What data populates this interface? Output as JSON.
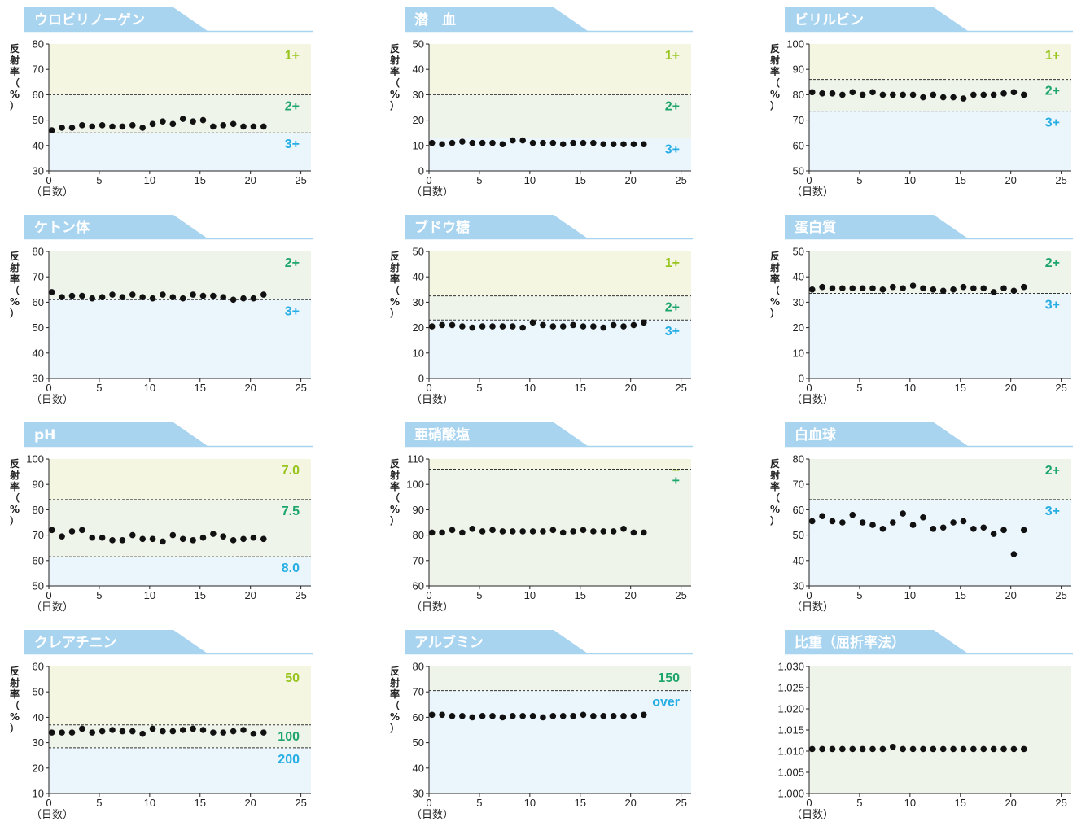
{
  "common": {
    "ylabel": "反射率（%）",
    "xlabel": "（日数）",
    "colors": {
      "tab": "#a9d4f0",
      "band_yellow": "#f4f6e2",
      "band_green": "#eef4ea",
      "band_blue": "#ebf5fc",
      "label_yellow": "#98c41e",
      "label_green": "#1ea56b",
      "label_blue": "#26aee4"
    }
  },
  "chart_data": [
    {
      "type": "scatter",
      "title": "ウロビリノーゲン",
      "xlabel": "（日数）",
      "ylabel": "反射率（%）",
      "xlim": [
        0,
        26
      ],
      "ylim": [
        30,
        80
      ],
      "xticks": [
        "0",
        "5",
        "10",
        "15",
        "20",
        "25"
      ],
      "yticks": [
        "30",
        "40",
        "50",
        "60",
        "70",
        "80"
      ],
      "thresholds": [
        60,
        45
      ],
      "bands": [
        {
          "from": 60,
          "to": 80,
          "label": "1+",
          "color": "yellow"
        },
        {
          "from": 45,
          "to": 60,
          "label": "2+",
          "color": "green"
        },
        {
          "from": 30,
          "to": 45,
          "label": "3+",
          "color": "blue"
        }
      ],
      "x": [
        0.3,
        1.3,
        2.3,
        3.3,
        4.3,
        5.3,
        6.3,
        7.3,
        8.3,
        9.3,
        10.3,
        11.3,
        12.3,
        13.3,
        14.3,
        15.3,
        16.3,
        17.3,
        18.3,
        19.3,
        20.3,
        21.3
      ],
      "y": [
        46,
        47,
        47,
        48,
        47.5,
        48,
        47.5,
        47.5,
        48,
        47,
        48.5,
        49.5,
        48.5,
        50.5,
        49.5,
        50,
        47.5,
        48,
        48.5,
        47.5,
        47.5,
        47.5
      ]
    },
    {
      "type": "scatter",
      "title": "潜　血",
      "xlabel": "（日数）",
      "ylabel": "反射率（%）",
      "xlim": [
        0,
        26
      ],
      "ylim": [
        0,
        50
      ],
      "xticks": [
        "0",
        "5",
        "10",
        "15",
        "20",
        "25"
      ],
      "yticks": [
        "0",
        "10",
        "20",
        "30",
        "40",
        "50"
      ],
      "thresholds": [
        30,
        13
      ],
      "bands": [
        {
          "from": 30,
          "to": 50,
          "label": "1+",
          "color": "yellow"
        },
        {
          "from": 13,
          "to": 30,
          "label": "2+",
          "color": "green"
        },
        {
          "from": 0,
          "to": 13,
          "label": "3+",
          "color": "blue"
        }
      ],
      "x": [
        0.3,
        1.3,
        2.3,
        3.3,
        4.3,
        5.3,
        6.3,
        7.3,
        8.3,
        9.3,
        10.3,
        11.3,
        12.3,
        13.3,
        14.3,
        15.3,
        16.3,
        17.3,
        18.3,
        19.3,
        20.3,
        21.3
      ],
      "y": [
        11,
        10.5,
        11,
        11.5,
        11,
        11,
        11,
        10.5,
        12,
        12,
        11,
        11,
        11,
        10.5,
        11,
        11,
        11,
        10.5,
        10.5,
        10.5,
        10.5,
        10.5
      ]
    },
    {
      "type": "scatter",
      "title": "ビリルビン",
      "xlabel": "（日数）",
      "ylabel": "反射率（%）",
      "xlim": [
        0,
        26
      ],
      "ylim": [
        50,
        100
      ],
      "xticks": [
        "0",
        "5",
        "10",
        "15",
        "20",
        "25"
      ],
      "yticks": [
        "50",
        "60",
        "70",
        "80",
        "90",
        "100"
      ],
      "thresholds": [
        86,
        73.5
      ],
      "bands": [
        {
          "from": 86,
          "to": 100,
          "label": "1+",
          "color": "yellow"
        },
        {
          "from": 73.5,
          "to": 86,
          "label": "2+",
          "color": "green"
        },
        {
          "from": 50,
          "to": 73.5,
          "label": "3+",
          "color": "blue"
        }
      ],
      "x": [
        0.3,
        1.3,
        2.3,
        3.3,
        4.3,
        5.3,
        6.3,
        7.3,
        8.3,
        9.3,
        10.3,
        11.3,
        12.3,
        13.3,
        14.3,
        15.3,
        16.3,
        17.3,
        18.3,
        19.3,
        20.3,
        21.3
      ],
      "y": [
        81,
        80.5,
        80.5,
        80,
        81,
        80,
        81,
        80,
        80,
        80,
        80,
        79,
        80,
        79,
        79,
        78.5,
        80,
        80,
        80,
        80.5,
        81,
        80
      ]
    },
    {
      "type": "scatter",
      "title": "ケトン体",
      "xlabel": "（日数）",
      "ylabel": "反射率（%）",
      "xlim": [
        0,
        26
      ],
      "ylim": [
        30,
        80
      ],
      "xticks": [
        "0",
        "5",
        "10",
        "15",
        "20",
        "25"
      ],
      "yticks": [
        "30",
        "40",
        "50",
        "60",
        "70",
        "80"
      ],
      "thresholds": [
        61
      ],
      "bands": [
        {
          "from": 61,
          "to": 80,
          "label": "2+",
          "color": "green"
        },
        {
          "from": 30,
          "to": 61,
          "label": "3+",
          "color": "blue"
        }
      ],
      "x": [
        0.3,
        1.3,
        2.3,
        3.3,
        4.3,
        5.3,
        6.3,
        7.3,
        8.3,
        9.3,
        10.3,
        11.3,
        12.3,
        13.3,
        14.3,
        15.3,
        16.3,
        17.3,
        18.3,
        19.3,
        20.3,
        21.3
      ],
      "y": [
        64,
        62,
        62.5,
        62.5,
        61.5,
        62,
        63,
        62,
        63,
        62,
        61.5,
        63,
        62,
        61.5,
        63,
        62.5,
        62.5,
        62,
        61,
        61.5,
        61.5,
        63
      ]
    },
    {
      "type": "scatter",
      "title": "ブドウ糖",
      "xlabel": "（日数）",
      "ylabel": "反射率（%）",
      "xlim": [
        0,
        26
      ],
      "ylim": [
        0,
        50
      ],
      "xticks": [
        "0",
        "5",
        "10",
        "15",
        "20",
        "25"
      ],
      "yticks": [
        "0",
        "10",
        "20",
        "30",
        "40",
        "50"
      ],
      "thresholds": [
        32.5,
        23
      ],
      "bands": [
        {
          "from": 32.5,
          "to": 50,
          "label": "1+",
          "color": "yellow"
        },
        {
          "from": 23,
          "to": 32.5,
          "label": "2+",
          "color": "green"
        },
        {
          "from": 0,
          "to": 23,
          "label": "3+",
          "color": "blue"
        }
      ],
      "x": [
        0.3,
        1.3,
        2.3,
        3.3,
        4.3,
        5.3,
        6.3,
        7.3,
        8.3,
        9.3,
        10.3,
        11.3,
        12.3,
        13.3,
        14.3,
        15.3,
        16.3,
        17.3,
        18.3,
        19.3,
        20.3,
        21.3
      ],
      "y": [
        20.5,
        21,
        21,
        20.5,
        20,
        20.5,
        20.5,
        20.5,
        20.5,
        20,
        22,
        21,
        20.5,
        20.5,
        21,
        20.5,
        20.5,
        20,
        21,
        20.5,
        21,
        22
      ]
    },
    {
      "type": "scatter",
      "title": "蛋白質",
      "xlabel": "（日数）",
      "ylabel": "反射率（%）",
      "xlim": [
        0,
        26
      ],
      "ylim": [
        0,
        50
      ],
      "xticks": [
        "0",
        "5",
        "10",
        "15",
        "20",
        "25"
      ],
      "yticks": [
        "0",
        "10",
        "20",
        "30",
        "40",
        "50"
      ],
      "thresholds": [
        33.5
      ],
      "bands": [
        {
          "from": 33.5,
          "to": 50,
          "label": "2+",
          "color": "green"
        },
        {
          "from": 0,
          "to": 33.5,
          "label": "3+",
          "color": "blue"
        }
      ],
      "x": [
        0.3,
        1.3,
        2.3,
        3.3,
        4.3,
        5.3,
        6.3,
        7.3,
        8.3,
        9.3,
        10.3,
        11.3,
        12.3,
        13.3,
        14.3,
        15.3,
        16.3,
        17.3,
        18.3,
        19.3,
        20.3,
        21.3
      ],
      "y": [
        35,
        36,
        35.5,
        35.5,
        35.5,
        35.5,
        35.5,
        35,
        36,
        35.5,
        36.5,
        35.5,
        35,
        34.5,
        35,
        36,
        35.5,
        35.5,
        34,
        35.5,
        34.5,
        36
      ]
    },
    {
      "type": "scatter",
      "title": "pH",
      "xlabel": "（日数）",
      "ylabel": "反射率（%）",
      "xlim": [
        0,
        26
      ],
      "ylim": [
        50,
        100
      ],
      "xticks": [
        "0",
        "5",
        "10",
        "15",
        "20",
        "25"
      ],
      "yticks": [
        "50",
        "60",
        "70",
        "80",
        "90",
        "100"
      ],
      "thresholds": [
        84,
        61.5
      ],
      "bands": [
        {
          "from": 84,
          "to": 100,
          "label": "7.0",
          "color": "yellow"
        },
        {
          "from": 61.5,
          "to": 84,
          "label": "7.5",
          "color": "green"
        },
        {
          "from": 50,
          "to": 61.5,
          "label": "8.0",
          "color": "blue"
        }
      ],
      "x": [
        0.3,
        1.3,
        2.3,
        3.3,
        4.3,
        5.3,
        6.3,
        7.3,
        8.3,
        9.3,
        10.3,
        11.3,
        12.3,
        13.3,
        14.3,
        15.3,
        16.3,
        17.3,
        18.3,
        19.3,
        20.3,
        21.3
      ],
      "y": [
        72,
        69.5,
        71.5,
        72,
        69,
        69,
        68,
        68,
        70,
        68.5,
        68.5,
        67.5,
        70,
        68.5,
        68,
        69,
        70.5,
        69.5,
        68,
        68.5,
        69,
        68.5
      ]
    },
    {
      "type": "scatter",
      "title": "亜硝酸塩",
      "xlabel": "（日数）",
      "ylabel": "反射率（%）",
      "xlim": [
        0,
        26
      ],
      "ylim": [
        60,
        110
      ],
      "xticks": [
        "0",
        "5",
        "10",
        "15",
        "20",
        "25"
      ],
      "yticks": [
        "60",
        "70",
        "80",
        "90",
        "100",
        "110"
      ],
      "thresholds": [
        106
      ],
      "bands": [
        {
          "from": 106,
          "to": 110,
          "label": "−",
          "color": "yellow"
        },
        {
          "from": 60,
          "to": 106,
          "label": "+",
          "color": "green"
        }
      ],
      "x": [
        0.3,
        1.3,
        2.3,
        3.3,
        4.3,
        5.3,
        6.3,
        7.3,
        8.3,
        9.3,
        10.3,
        11.3,
        12.3,
        13.3,
        14.3,
        15.3,
        16.3,
        17.3,
        18.3,
        19.3,
        20.3,
        21.3
      ],
      "y": [
        81,
        81,
        82,
        81,
        82.5,
        81.5,
        82,
        81.5,
        81.5,
        81.5,
        81.5,
        81.5,
        82,
        81,
        81.5,
        82,
        81.5,
        81.5,
        81.5,
        82.5,
        81,
        81
      ]
    },
    {
      "type": "scatter",
      "title": "白血球",
      "xlabel": "（日数）",
      "ylabel": "反射率（%）",
      "xlim": [
        0,
        26
      ],
      "ylim": [
        30,
        80
      ],
      "xticks": [
        "0",
        "5",
        "10",
        "15",
        "20",
        "25"
      ],
      "yticks": [
        "30",
        "40",
        "50",
        "60",
        "70",
        "80"
      ],
      "thresholds": [
        64
      ],
      "bands": [
        {
          "from": 64,
          "to": 80,
          "label": "2+",
          "color": "green"
        },
        {
          "from": 30,
          "to": 64,
          "label": "3+",
          "color": "blue"
        }
      ],
      "x": [
        0.3,
        1.3,
        2.3,
        3.3,
        4.3,
        5.3,
        6.3,
        7.3,
        8.3,
        9.3,
        10.3,
        11.3,
        12.3,
        13.3,
        14.3,
        15.3,
        16.3,
        17.3,
        18.3,
        19.3,
        20.3,
        21.3
      ],
      "y": [
        55.5,
        57.5,
        55.5,
        55,
        58,
        55,
        54,
        52.5,
        55,
        58.5,
        54,
        57,
        52.5,
        53,
        55,
        55.5,
        52.5,
        53,
        50.5,
        52,
        42.5,
        52
      ]
    },
    {
      "type": "scatter",
      "title": "クレアチニン",
      "xlabel": "（日数）",
      "ylabel": "反射率（%）",
      "xlim": [
        0,
        26
      ],
      "ylim": [
        10,
        60
      ],
      "xticks": [
        "0",
        "5",
        "10",
        "15",
        "20",
        "25"
      ],
      "yticks": [
        "10",
        "20",
        "30",
        "40",
        "50",
        "60"
      ],
      "thresholds": [
        37,
        28
      ],
      "bands": [
        {
          "from": 37,
          "to": 60,
          "label": "50",
          "color": "yellow"
        },
        {
          "from": 28,
          "to": 37,
          "label": "100",
          "color": "green"
        },
        {
          "from": 10,
          "to": 28,
          "label": "200",
          "color": "blue"
        }
      ],
      "x": [
        0.3,
        1.3,
        2.3,
        3.3,
        4.3,
        5.3,
        6.3,
        7.3,
        8.3,
        9.3,
        10.3,
        11.3,
        12.3,
        13.3,
        14.3,
        15.3,
        16.3,
        17.3,
        18.3,
        19.3,
        20.3,
        21.3
      ],
      "y": [
        34,
        34,
        34,
        35.5,
        34,
        34.5,
        35,
        34.5,
        34.5,
        33.5,
        35.5,
        34.5,
        34.5,
        35,
        35.5,
        35,
        34,
        34,
        34.5,
        35,
        33.5,
        34
      ]
    },
    {
      "type": "scatter",
      "title": "アルブミン",
      "xlabel": "（日数）",
      "ylabel": "反射率（%）",
      "xlim": [
        0,
        26
      ],
      "ylim": [
        30,
        80
      ],
      "xticks": [
        "0",
        "5",
        "10",
        "15",
        "20",
        "25"
      ],
      "yticks": [
        "30",
        "40",
        "50",
        "60",
        "70",
        "80"
      ],
      "thresholds": [
        70.5
      ],
      "bands": [
        {
          "from": 70.5,
          "to": 80,
          "label": "150",
          "color": "green"
        },
        {
          "from": 30,
          "to": 70.5,
          "label": "over",
          "color": "blue"
        }
      ],
      "x": [
        0.3,
        1.3,
        2.3,
        3.3,
        4.3,
        5.3,
        6.3,
        7.3,
        8.3,
        9.3,
        10.3,
        11.3,
        12.3,
        13.3,
        14.3,
        15.3,
        16.3,
        17.3,
        18.3,
        19.3,
        20.3,
        21.3
      ],
      "y": [
        61,
        61,
        60.5,
        60.5,
        60,
        60.5,
        60.5,
        60,
        60.5,
        60.5,
        60.5,
        60,
        60.5,
        60.5,
        60.5,
        61,
        60.5,
        60.5,
        60.5,
        60.5,
        60.5,
        61
      ]
    },
    {
      "type": "scatter",
      "title": "比重（屈折率法）",
      "xlabel": "（日数）",
      "ylabel": "",
      "xlim": [
        0,
        26
      ],
      "ylim": [
        1.0,
        1.03
      ],
      "xticks": [
        "0",
        "5",
        "10",
        "15",
        "20",
        "25"
      ],
      "yticks": [
        "1.000",
        "1.005",
        "1.010",
        "1.015",
        "1.020",
        "1.025",
        "1.030"
      ],
      "thresholds": [],
      "bands": [
        {
          "from": 1.0,
          "to": 1.03,
          "label": "",
          "color": "green"
        }
      ],
      "x": [
        0.3,
        1.3,
        2.3,
        3.3,
        4.3,
        5.3,
        6.3,
        7.3,
        8.3,
        9.3,
        10.3,
        11.3,
        12.3,
        13.3,
        14.3,
        15.3,
        16.3,
        17.3,
        18.3,
        19.3,
        20.3,
        21.3
      ],
      "y": [
        1.0105,
        1.0105,
        1.0105,
        1.0105,
        1.0105,
        1.0105,
        1.0105,
        1.0105,
        1.011,
        1.0105,
        1.0105,
        1.0105,
        1.0105,
        1.0105,
        1.0105,
        1.0105,
        1.0105,
        1.0105,
        1.0105,
        1.0105,
        1.0105,
        1.0105
      ]
    }
  ]
}
